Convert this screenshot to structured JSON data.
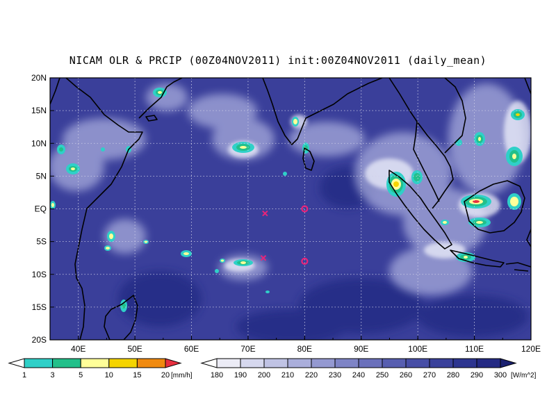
{
  "title": "NICAM OLR & PRCIP (00Z04NOV2011) init:00Z04NOV2011 (daily_mean)",
  "map": {
    "lon_range": [
      35,
      120
    ],
    "lat_range": [
      -20,
      20
    ],
    "x_ticks": [
      "40E",
      "50E",
      "60E",
      "70E",
      "80E",
      "90E",
      "100E",
      "110E",
      "120E"
    ],
    "y_ticks": [
      "20N",
      "15N",
      "10N",
      "5N",
      "EQ",
      "5S",
      "10S",
      "15S",
      "20S"
    ],
    "ocean_color": "#3a3f9a",
    "grid": "dotted"
  },
  "markers": [
    {
      "type": "cross",
      "lon": 73,
      "lat": -0.7,
      "color": "#e8247a"
    },
    {
      "type": "cross",
      "lon": 72.7,
      "lat": -7.5,
      "color": "#e8247a"
    },
    {
      "type": "circle",
      "lon": 80,
      "lat": 0,
      "color": "#e8247a"
    },
    {
      "type": "circle",
      "lon": 80,
      "lat": -8,
      "color": "#e8247a"
    }
  ],
  "precip_legend": {
    "labels": [
      "1",
      "3",
      "5",
      "10",
      "15",
      "20"
    ],
    "unit": "[mm/h]",
    "colors": [
      "#ffffff",
      "#2fd0c8",
      "#22c08a",
      "#ffff99",
      "#f5d400",
      "#f08a10",
      "#e83040"
    ]
  },
  "olr_legend": {
    "labels": [
      "180",
      "190",
      "200",
      "210",
      "220",
      "230",
      "240",
      "250",
      "260",
      "270",
      "280",
      "290",
      "300"
    ],
    "unit": "[W/m^2]",
    "colors": [
      "#ffffff",
      "#ececf6",
      "#d6d8ee",
      "#c0c3e4",
      "#aaaedb",
      "#9499d1",
      "#7e84c6",
      "#6a70bb",
      "#575eb0",
      "#474ea6",
      "#3a419b",
      "#2d3590",
      "#242a84",
      "#1a2070"
    ]
  }
}
